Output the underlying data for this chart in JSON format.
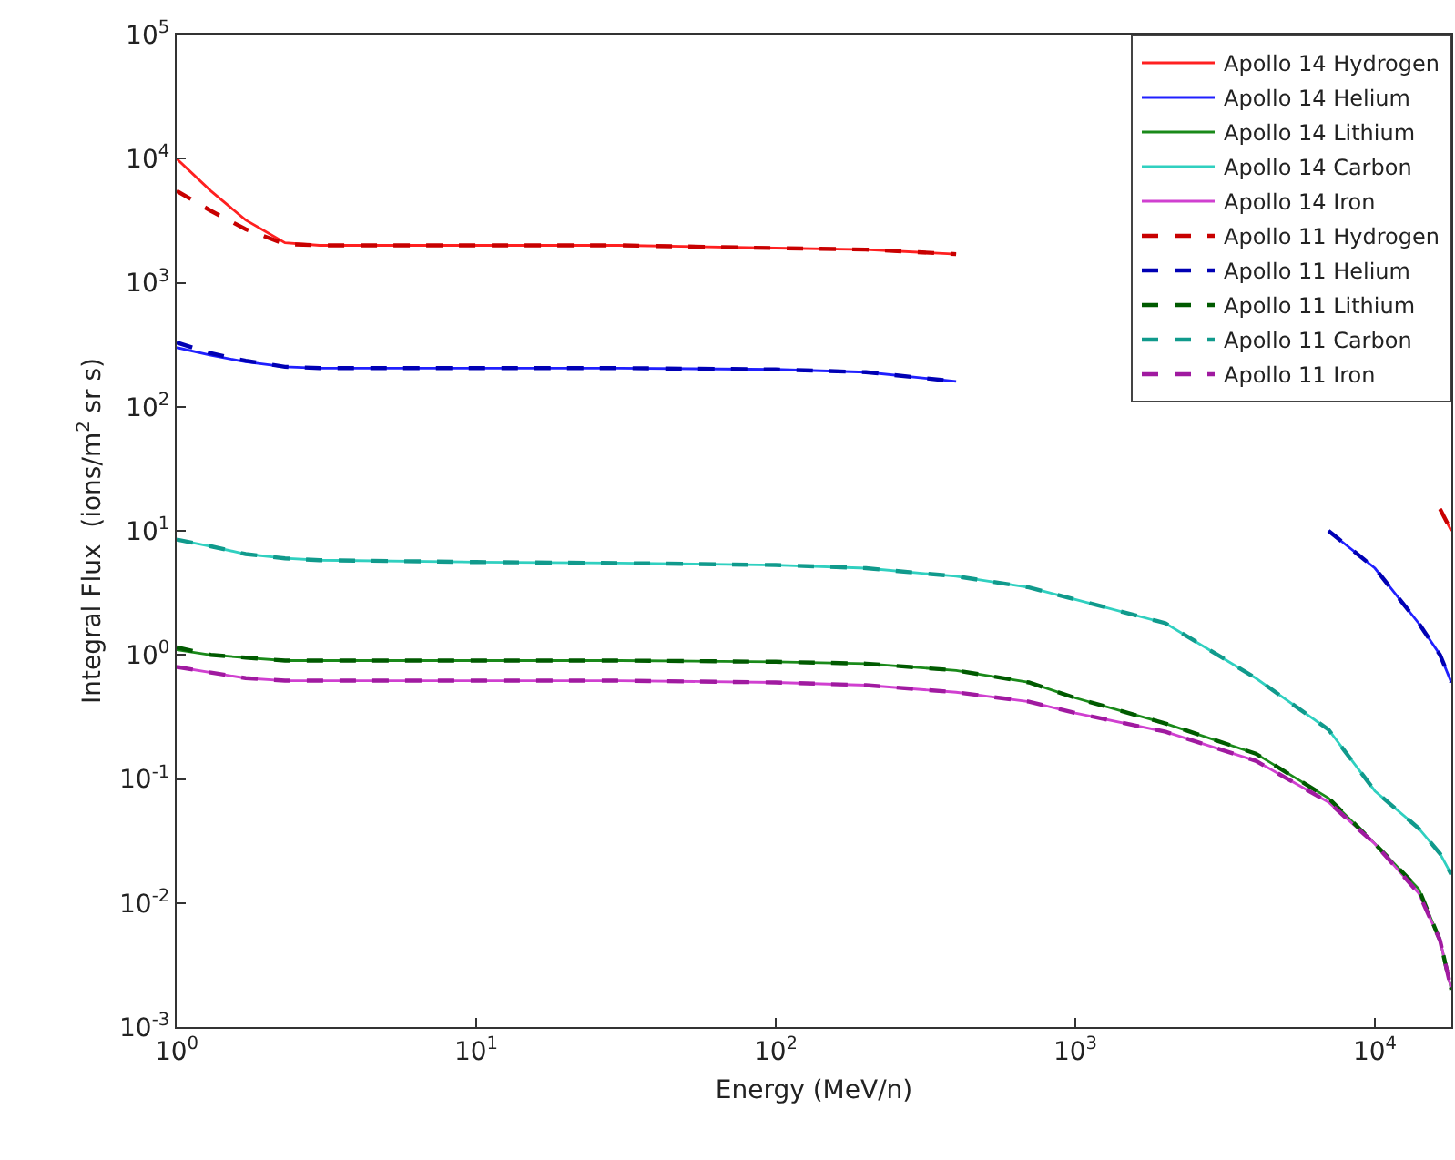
{
  "chart_data": {
    "type": "line",
    "xlabel": "Energy (MeV/n)",
    "ylabel": "Integral Flux  (ions/m$^{2}$ sr s)",
    "log": "xy",
    "grid": false,
    "legend": "top right",
    "xlim": [
      1,
      18000
    ],
    "ylim": [
      0.001,
      100000
    ],
    "xticks": [
      {
        "value": 1,
        "label": "10$^{0}$"
      },
      {
        "value": 10,
        "label": "10$^{1}$"
      },
      {
        "value": 100,
        "label": "10$^{2}$"
      },
      {
        "value": 1000,
        "label": "10$^{3}$"
      },
      {
        "value": 10000,
        "label": "10$^{4}$"
      }
    ],
    "yticks": [
      {
        "value": 0.001,
        "label": "10$^{-3}$"
      },
      {
        "value": 0.01,
        "label": "10$^{-2}$"
      },
      {
        "value": 0.1,
        "label": "10$^{-1}$"
      },
      {
        "value": 1,
        "label": "10$^{0}$"
      },
      {
        "value": 10,
        "label": "10$^{1}$"
      },
      {
        "value": 100,
        "label": "10$^{2}$"
      },
      {
        "value": 1000,
        "label": "10$^{3}$"
      },
      {
        "value": 10000,
        "label": "10$^{4}$"
      },
      {
        "value": 100000,
        "label": "10$^{5}$"
      }
    ],
    "x": [
      1,
      1.3,
      1.7,
      2.3,
      3,
      10,
      30,
      100,
      200,
      400,
      700,
      1000,
      2000,
      4000,
      7000,
      10000,
      14000,
      16500,
      18000
    ],
    "series": [
      {
        "name": "Apollo 14 Hydrogen",
        "color": "#ff2020",
        "line_style": "solid",
        "values": [
          10000,
          5500,
          3200,
          2100,
          2000,
          2000,
          2000,
          1900,
          1850,
          1700,
          null,
          null,
          null,
          null,
          null,
          null,
          null,
          15,
          10
        ]
      },
      {
        "name": "Apollo 14 Helium",
        "color": "#2020ff",
        "line_style": "solid",
        "values": [
          300,
          260,
          230,
          210,
          205,
          205,
          205,
          200,
          190,
          160,
          null,
          null,
          null,
          null,
          10,
          5,
          1.8,
          1,
          0.6
        ]
      },
      {
        "name": "Apollo 14 Lithium",
        "color": "#1a8a1a",
        "line_style": "solid",
        "values": [
          1.1,
          1.0,
          0.95,
          0.9,
          0.9,
          0.9,
          0.9,
          0.88,
          0.85,
          0.75,
          0.6,
          0.45,
          0.28,
          0.16,
          0.07,
          0.03,
          0.013,
          0.005,
          0.002
        ]
      },
      {
        "name": "Apollo 14 Carbon",
        "color": "#30d0c0",
        "line_style": "solid",
        "values": [
          8.5,
          7.5,
          6.5,
          6,
          5.8,
          5.6,
          5.5,
          5.3,
          5,
          4.3,
          3.5,
          2.8,
          1.8,
          0.65,
          0.25,
          0.08,
          0.04,
          0.025,
          0.017
        ]
      },
      {
        "name": "Apollo 14 Iron",
        "color": "#d040d0",
        "line_style": "solid",
        "values": [
          0.8,
          0.72,
          0.65,
          0.62,
          0.62,
          0.62,
          0.62,
          0.6,
          0.57,
          0.5,
          0.42,
          0.34,
          0.24,
          0.14,
          0.065,
          0.03,
          0.012,
          0.005,
          0.002
        ]
      },
      {
        "name": "Apollo 11 Hydrogen",
        "color": "#c80000",
        "line_style": "dashed",
        "values": [
          5500,
          3800,
          2700,
          2050,
          2000,
          2000,
          2000,
          1900,
          1850,
          1700,
          null,
          null,
          null,
          null,
          null,
          null,
          null,
          15,
          10
        ]
      },
      {
        "name": "Apollo 11 Helium",
        "color": "#0000b4",
        "line_style": "dashed",
        "values": [
          330,
          270,
          235,
          210,
          205,
          205,
          205,
          200,
          190,
          160,
          null,
          null,
          null,
          null,
          10,
          5,
          1.8,
          1,
          0.6
        ]
      },
      {
        "name": "Apollo 11 Lithium",
        "color": "#005a00",
        "line_style": "dashed",
        "values": [
          1.15,
          1.0,
          0.95,
          0.9,
          0.9,
          0.9,
          0.9,
          0.88,
          0.85,
          0.75,
          0.6,
          0.45,
          0.28,
          0.16,
          0.07,
          0.03,
          0.013,
          0.005,
          0.002
        ]
      },
      {
        "name": "Apollo 11 Carbon",
        "color": "#109a8c",
        "line_style": "dashed",
        "values": [
          8.5,
          7.5,
          6.5,
          6,
          5.8,
          5.6,
          5.5,
          5.3,
          5,
          4.3,
          3.5,
          2.8,
          1.8,
          0.65,
          0.25,
          0.08,
          0.04,
          0.025,
          0.017
        ]
      },
      {
        "name": "Apollo 11 Iron",
        "color": "#a01aa0",
        "line_style": "dashed",
        "values": [
          0.8,
          0.72,
          0.65,
          0.62,
          0.62,
          0.62,
          0.62,
          0.6,
          0.57,
          0.5,
          0.42,
          0.34,
          0.24,
          0.14,
          0.065,
          0.03,
          0.012,
          0.005,
          0.002
        ]
      }
    ]
  }
}
